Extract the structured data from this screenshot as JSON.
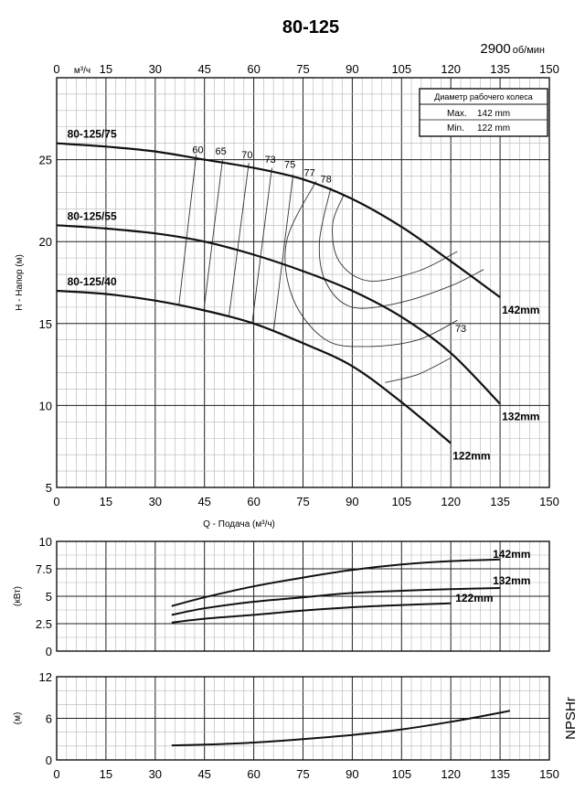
{
  "title": "80-125",
  "speed": {
    "value": "2900",
    "unit": "об/мин"
  },
  "chart_data": [
    {
      "id": "head",
      "type": "line",
      "ylabel": "H - Напор (м)",
      "xlabel": "Q - Подача (м³/ч)",
      "top_axis_unit": "м³/ч",
      "xlim": [
        0,
        150
      ],
      "ylim": [
        5,
        30
      ],
      "x_ticks": [
        0,
        15,
        30,
        45,
        60,
        75,
        90,
        105,
        120,
        135,
        150
      ],
      "y_ticks": [
        5,
        10,
        15,
        20,
        25
      ],
      "grid": true,
      "impeller_table": {
        "header": "Диаметр рабочего колеса",
        "rows": [
          {
            "label": "Max.",
            "value": "142 mm"
          },
          {
            "label": "Min.",
            "value": "122 mm"
          }
        ]
      },
      "series": [
        {
          "name": "142mm",
          "label": "80-125/75",
          "x": [
            0,
            15,
            30,
            45,
            60,
            75,
            90,
            105,
            120,
            135
          ],
          "y": [
            26.0,
            25.8,
            25.5,
            25.0,
            24.5,
            23.8,
            22.6,
            20.9,
            18.8,
            16.6
          ]
        },
        {
          "name": "132mm",
          "label": "80-125/55",
          "x": [
            0,
            15,
            30,
            45,
            60,
            75,
            90,
            105,
            120,
            135
          ],
          "y": [
            21.0,
            20.8,
            20.5,
            20.0,
            19.2,
            18.2,
            17.0,
            15.4,
            13.2,
            10.1
          ]
        },
        {
          "name": "122mm",
          "label": "80-125/40",
          "x": [
            0,
            15,
            30,
            45,
            60,
            75,
            90,
            105,
            120
          ],
          "y": [
            17.0,
            16.8,
            16.4,
            15.8,
            15.0,
            13.8,
            12.4,
            10.2,
            7.7
          ]
        }
      ],
      "efficiency_labels": [
        {
          "text": "60",
          "x": 43,
          "y": 25.4
        },
        {
          "text": "65",
          "x": 50,
          "y": 25.3
        },
        {
          "text": "70",
          "x": 58,
          "y": 25.1
        },
        {
          "text": "73",
          "x": 65,
          "y": 24.8
        },
        {
          "text": "75",
          "x": 71,
          "y": 24.5
        },
        {
          "text": "77",
          "x": 77,
          "y": 24.0
        },
        {
          "text": "78",
          "x": 82,
          "y": 23.6
        },
        {
          "text": "73",
          "x": 123,
          "y": 14.5
        }
      ],
      "efficiency_lines": [
        {
          "x": [
            42.5,
            37.2
          ],
          "y": [
            25.3,
            16.1
          ]
        },
        {
          "x": [
            50.5,
            44.8
          ],
          "y": [
            25.0,
            15.8
          ]
        },
        {
          "x": [
            58.5,
            52.5
          ],
          "y": [
            24.8,
            15.5
          ]
        },
        {
          "x": [
            65.5,
            59.5
          ],
          "y": [
            24.5,
            15.0
          ]
        },
        {
          "x": [
            72.0,
            66.0
          ],
          "y": [
            24.1,
            14.5
          ]
        },
        {
          "x": [
            79.0,
            70,
            72,
            82,
            95,
            110,
            122
          ],
          "y": [
            23.7,
            20,
            16.5,
            14.0,
            13.6,
            14.0,
            15.2
          ]
        },
        {
          "x": [
            83.5,
            80,
            82,
            90,
            105,
            120,
            130
          ],
          "y": [
            23.3,
            20,
            17.5,
            16.0,
            16.3,
            17.3,
            18.3
          ]
        },
        {
          "x": [
            87.5,
            84,
            86,
            95,
            110,
            122
          ],
          "y": [
            22.9,
            21,
            18.8,
            17.6,
            18.2,
            19.4
          ]
        },
        {
          "x": [
            100,
            110,
            120
          ],
          "y": [
            11.4,
            11.9,
            12.9
          ]
        }
      ]
    },
    {
      "id": "power",
      "type": "line",
      "ylabel": "(кВт)",
      "xlim": [
        0,
        150
      ],
      "ylim": [
        0,
        10
      ],
      "y_ticks": [
        0,
        2.5,
        5,
        7.5,
        10
      ],
      "y_tick_labels": [
        "0",
        "2.5",
        "5",
        "7.5",
        "10"
      ],
      "grid": true,
      "series": [
        {
          "name": "142mm",
          "x": [
            35,
            45,
            60,
            75,
            90,
            105,
            120,
            135
          ],
          "y": [
            4.1,
            4.9,
            5.9,
            6.7,
            7.4,
            7.9,
            8.2,
            8.35
          ]
        },
        {
          "name": "132mm",
          "x": [
            35,
            45,
            60,
            75,
            90,
            105,
            120,
            135
          ],
          "y": [
            3.3,
            3.9,
            4.5,
            4.9,
            5.3,
            5.5,
            5.65,
            5.75
          ]
        },
        {
          "name": "122mm",
          "x": [
            35,
            45,
            60,
            75,
            90,
            105,
            120
          ],
          "y": [
            2.6,
            2.95,
            3.3,
            3.7,
            4.0,
            4.2,
            4.35
          ]
        }
      ]
    },
    {
      "id": "npshr",
      "type": "line",
      "ylabel": "(м)",
      "side_label": "NPSHr",
      "xlim": [
        0,
        150
      ],
      "ylim": [
        0,
        12
      ],
      "x_ticks": [
        0,
        15,
        30,
        45,
        60,
        75,
        90,
        105,
        120,
        135,
        150
      ],
      "y_ticks": [
        0,
        6,
        12
      ],
      "grid": true,
      "series": [
        {
          "name": "NPSHr",
          "x": [
            35,
            45,
            60,
            75,
            90,
            105,
            120,
            135,
            138
          ],
          "y": [
            2.1,
            2.2,
            2.5,
            3.0,
            3.6,
            4.4,
            5.5,
            6.8,
            7.1
          ]
        }
      ]
    }
  ]
}
